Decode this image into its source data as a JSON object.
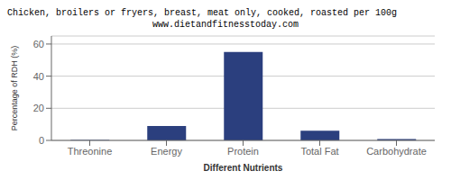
{
  "chart_data": {
    "type": "bar",
    "title": "Chicken, broilers or fryers, breast, meat only, cooked, roasted per 100g",
    "subtitle": "www.dietandfitnesstoday.com",
    "categories": [
      "Threonine",
      "Energy",
      "Protein",
      "Total Fat",
      "Carbohydrate"
    ],
    "values": [
      0.3,
      9.0,
      55.0,
      6.0,
      0.8
    ],
    "color": "#2b3f7e",
    "xlabel": "Different Nutrients",
    "ylabel": "Percentage of RDH (%)",
    "ylim": [
      0,
      65
    ],
    "yticks": [
      0,
      20,
      40,
      60
    ],
    "grid": true
  }
}
